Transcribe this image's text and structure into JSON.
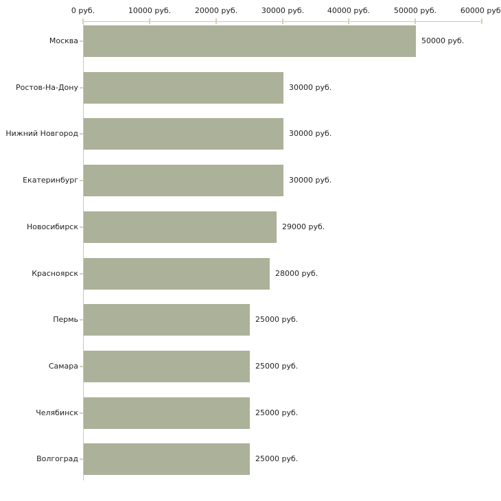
{
  "chart_data": {
    "type": "bar",
    "orientation": "horizontal",
    "title": "",
    "xlabel": "",
    "ylabel": "",
    "categories": [
      "Москва",
      "Ростов-На-Дону",
      "Нижний Новгород",
      "Екатеринбург",
      "Новосибирск",
      "Красноярск",
      "Пермь",
      "Самара",
      "Челябинск",
      "Волгоград"
    ],
    "values": [
      50000,
      30000,
      30000,
      30000,
      29000,
      28000,
      25000,
      25000,
      25000,
      25000
    ],
    "value_labels": [
      "50000 руб.",
      "30000 руб.",
      "30000 руб.",
      "30000 руб.",
      "29000 руб.",
      "28000 руб.",
      "25000 руб.",
      "25000 руб.",
      "25000 руб.",
      "25000 руб."
    ],
    "x_axis": {
      "position": "top",
      "range": [
        0,
        60000
      ],
      "ticks": [
        0,
        10000,
        20000,
        30000,
        40000,
        50000,
        60000
      ],
      "tick_labels": [
        "0 руб.",
        "10000 руб.",
        "20000 руб.",
        "30000 руб.",
        "40000 руб.",
        "50000 руб.",
        "60000 руб."
      ]
    },
    "grid": false,
    "legend": false,
    "colors": {
      "bar": "#acb199",
      "axis_line": "#c6c6c6",
      "tick_mark": "#d4d1b2",
      "text": "#222222",
      "background": "#ffffff"
    }
  }
}
